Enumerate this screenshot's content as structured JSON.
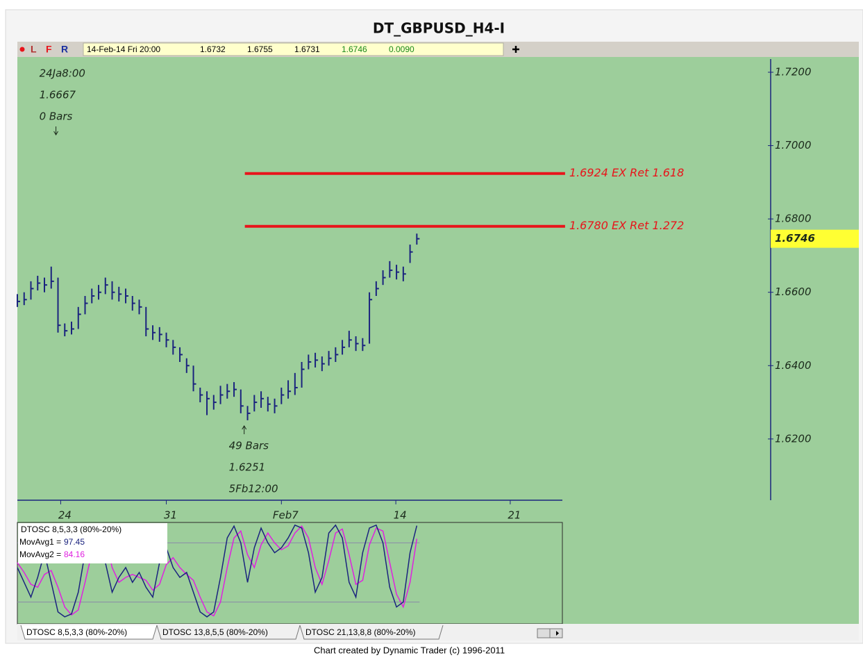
{
  "title": "DT_GBPUSD_H4-I",
  "toolbar": {
    "flags": [
      "L",
      "F",
      "R"
    ],
    "quote": [
      "14-Feb-14 Fri 20:00",
      "1.6732",
      "1.6755",
      "1.6731",
      "1.6746",
      "0.0090"
    ]
  },
  "chart_data": {
    "type": "ohlc",
    "color": "#1a237e",
    "high": [
      1.6595,
      1.66,
      1.663,
      1.6645,
      1.664,
      1.667,
      1.664,
      1.6515,
      1.652,
      1.656,
      1.659,
      1.661,
      1.662,
      1.664,
      1.663,
      1.6615,
      1.661,
      1.659,
      1.658,
      1.656,
      1.651,
      1.6505,
      1.649,
      1.647,
      1.645,
      1.642,
      1.64,
      1.634,
      1.633,
      1.632,
      1.6345,
      1.635,
      1.6355,
      1.6335,
      1.629,
      1.632,
      1.633,
      1.6315,
      1.631,
      1.634,
      1.636,
      1.638,
      1.641,
      1.643,
      1.6435,
      1.6425,
      1.644,
      1.645,
      1.647,
      1.6495,
      1.648,
      1.6475,
      1.66,
      1.663,
      1.666,
      1.6685,
      1.6675,
      1.667,
      1.673,
      1.676
    ],
    "low": [
      1.656,
      1.6565,
      1.658,
      1.6605,
      1.66,
      1.661,
      1.649,
      1.648,
      1.6485,
      1.65,
      1.654,
      1.657,
      1.658,
      1.6595,
      1.658,
      1.6575,
      1.657,
      1.655,
      1.654,
      1.648,
      1.647,
      1.6465,
      1.645,
      1.643,
      1.641,
      1.638,
      1.633,
      1.63,
      1.6265,
      1.628,
      1.6295,
      1.631,
      1.6315,
      1.627,
      1.6251,
      1.6275,
      1.6285,
      1.6275,
      1.627,
      1.6295,
      1.631,
      1.632,
      1.634,
      1.639,
      1.6395,
      1.6385,
      1.64,
      1.641,
      1.643,
      1.645,
      1.644,
      1.644,
      1.646,
      1.659,
      1.662,
      1.664,
      1.6635,
      1.663,
      1.668,
      1.673
    ],
    "close": [
      1.6575,
      1.658,
      1.661,
      1.6625,
      1.662,
      1.663,
      1.651,
      1.6495,
      1.65,
      1.654,
      1.657,
      1.659,
      1.66,
      1.662,
      1.66,
      1.6595,
      1.659,
      1.657,
      1.656,
      1.65,
      1.649,
      1.6485,
      1.647,
      1.645,
      1.643,
      1.64,
      1.635,
      1.632,
      1.631,
      1.63,
      1.632,
      1.633,
      1.6335,
      1.629,
      1.627,
      1.63,
      1.631,
      1.6295,
      1.629,
      1.632,
      1.633,
      1.634,
      1.639,
      1.641,
      1.6415,
      1.6405,
      1.642,
      1.643,
      1.645,
      1.647,
      1.646,
      1.6455,
      1.658,
      1.661,
      1.664,
      1.666,
      1.6655,
      1.665,
      1.671,
      1.6746
    ],
    "xlim": [
      0,
      80.5
    ],
    "xticks": [
      {
        "value": 6.4,
        "label": "24"
      },
      {
        "value": 22,
        "label": "31"
      },
      {
        "value": 39,
        "label": "Feb7"
      },
      {
        "value": 55.9,
        "label": "14"
      },
      {
        "value": 72.8,
        "label": "21"
      }
    ],
    "ylim": [
      1.6033,
      1.7236
    ],
    "yticks": [
      {
        "value": 1.72,
        "label": "1.7200"
      },
      {
        "value": 1.7,
        "label": "1.7000"
      },
      {
        "value": 1.68,
        "label": "1.6800"
      },
      {
        "value": 1.66,
        "label": "1.6600"
      },
      {
        "value": 1.64,
        "label": "1.6400"
      },
      {
        "value": 1.62,
        "label": "1.6200"
      }
    ],
    "levels": [
      {
        "value": 1.6924,
        "label": "1.6924 EX Ret 1.618",
        "x_start": 33.6,
        "x_end": 80.9,
        "color": "#e8141b"
      },
      {
        "value": 1.678,
        "label": "1.6780 EX Ret 1.272",
        "x_start": 33.6,
        "x_end": 80.9,
        "color": "#e8141b"
      }
    ],
    "annotations": [
      {
        "lines": [
          "24Ja8:00",
          "1.6667",
          "0 Bars"
        ],
        "x": 5.7,
        "arrow": "down"
      },
      {
        "lines": [
          "49 Bars",
          "1.6251",
          "5Fb12:00"
        ],
        "x": 33.5,
        "arrow": "up"
      }
    ],
    "oscillator": {
      "title": "DTOSC 8,5,3,3 (80%-20%)",
      "ylim": [
        0,
        100
      ],
      "levels": [
        20,
        80
      ],
      "series": [
        {
          "name": "MovAvg1 =",
          "color": "#1a237e",
          "values": [
            55,
            40,
            25,
            45,
            70,
            40,
            10,
            5,
            8,
            30,
            70,
            90,
            95,
            60,
            30,
            45,
            55,
            40,
            50,
            35,
            25,
            60,
            75,
            55,
            45,
            50,
            30,
            10,
            5,
            10,
            45,
            85,
            97,
            80,
            40,
            75,
            95,
            80,
            70,
            75,
            85,
            98,
            95,
            70,
            30,
            45,
            90,
            98,
            85,
            40,
            25,
            70,
            95,
            98,
            80,
            35,
            15,
            20,
            70,
            97.45
          ]
        },
        {
          "name": "MovAvg2 =",
          "color": "#e020e0",
          "values": [
            60,
            50,
            38,
            35,
            48,
            52,
            35,
            15,
            7,
            12,
            40,
            70,
            88,
            85,
            55,
            40,
            45,
            48,
            45,
            42,
            32,
            38,
            58,
            65,
            55,
            48,
            42,
            25,
            10,
            6,
            20,
            55,
            85,
            92,
            68,
            55,
            78,
            90,
            80,
            73,
            77,
            90,
            97,
            85,
            55,
            38,
            62,
            90,
            94,
            68,
            38,
            42,
            78,
            95,
            92,
            60,
            28,
            15,
            40,
            84.16
          ]
        }
      ]
    }
  },
  "tabs": [
    "DTOSC 8,5,3,3 (80%-20%)",
    "DTOSC 13,8,5,5 (80%-20%)",
    "DTOSC 21,13,8,8 (80%-20%)"
  ],
  "footer": "Chart created by Dynamic Trader  (c) 1996-2011"
}
